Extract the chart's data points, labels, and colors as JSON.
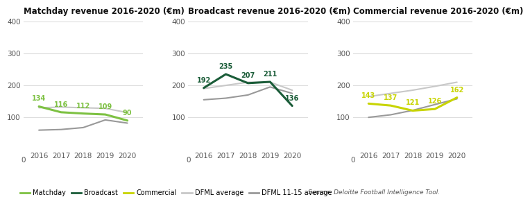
{
  "years": [
    2016,
    2017,
    2018,
    2019,
    2020
  ],
  "matchday": {
    "title": "Matchday revenue 2016-2020 (€m)",
    "arsenal": [
      134,
      116,
      112,
      109,
      90
    ],
    "dfml_avg": [
      130,
      132,
      130,
      128,
      115
    ],
    "dfml_1115": [
      60,
      62,
      68,
      92,
      82
    ]
  },
  "broadcast": {
    "title": "Broadcast revenue 2016-2020 (€m)",
    "arsenal": [
      192,
      235,
      207,
      211,
      136
    ],
    "dfml_avg": [
      190,
      200,
      210,
      210,
      185
    ],
    "dfml_1115": [
      155,
      160,
      170,
      195,
      175
    ]
  },
  "commercial": {
    "title": "Commercial revenue 2016-2020 (€m)",
    "arsenal": [
      143,
      137,
      121,
      126,
      162
    ],
    "dfml_avg": [
      165,
      175,
      185,
      197,
      210
    ],
    "dfml_1115": [
      100,
      108,
      122,
      140,
      158
    ]
  },
  "colors": {
    "matchday": "#7dc142",
    "broadcast": "#1a5c38",
    "commercial": "#c8d400",
    "dfml_avg": "#c8c8c8",
    "dfml_1115": "#999999"
  },
  "ylim": [
    0,
    400
  ],
  "yticks": [
    100,
    200,
    300,
    400
  ],
  "bg_color": "#ffffff",
  "legend_items": [
    "Matchday",
    "Broadcast",
    "Commercial",
    "DFML average",
    "DFML 11-15 average"
  ],
  "source_text": "Source: Deloitte Football Intelligence Tool."
}
